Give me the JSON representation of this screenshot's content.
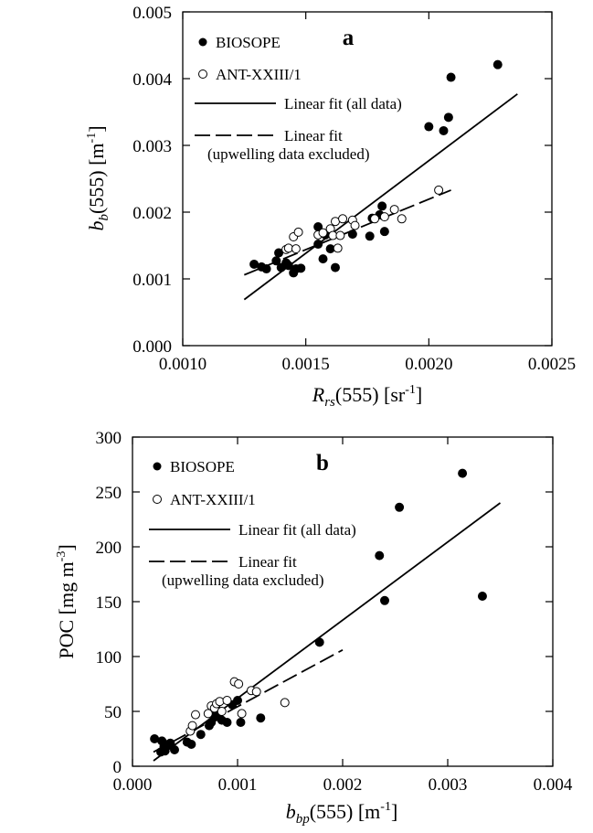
{
  "chart_data": [
    {
      "panel": "a",
      "type": "scatter",
      "xlabel": {
        "main": "R",
        "sub": "rs",
        "after": "(555)  [sr",
        "sup": "-1",
        "end": "]"
      },
      "ylabel": {
        "main": "b",
        "sub": "b",
        "after": "(555)  [m",
        "sup": "-1",
        "end": "]"
      },
      "xlim": [
        0.001,
        0.0025
      ],
      "ylim": [
        0,
        0.005
      ],
      "xticks": [
        "0.0010",
        "0.0015",
        "0.0020",
        "0.0025"
      ],
      "yticks": [
        "0.000",
        "0.001",
        "0.002",
        "0.003",
        "0.004",
        "0.005"
      ],
      "grid": false,
      "legend_position": "top-left",
      "legend": {
        "biosope": "BIOSOPE",
        "ant": "ANT-XXIII/1",
        "fit_all": "Linear fit (all data)",
        "fit_excl_1": "Linear fit",
        "fit_excl_2": "(upwelling data excluded)"
      },
      "series": [
        {
          "name": "BIOSOPE",
          "marker": "filled-circle",
          "points": [
            [
              0.00129,
              0.00122
            ],
            [
              0.00132,
              0.00118
            ],
            [
              0.00134,
              0.00115
            ],
            [
              0.00138,
              0.00127
            ],
            [
              0.00139,
              0.00139
            ],
            [
              0.0014,
              0.00117
            ],
            [
              0.00142,
              0.00124
            ],
            [
              0.00143,
              0.0012
            ],
            [
              0.00145,
              0.00109
            ],
            [
              0.00146,
              0.00115
            ],
            [
              0.00148,
              0.00116
            ],
            [
              0.00155,
              0.00152
            ],
            [
              0.00155,
              0.00178
            ],
            [
              0.00157,
              0.0013
            ],
            [
              0.00158,
              0.00166
            ],
            [
              0.0016,
              0.00145
            ],
            [
              0.00162,
              0.00117
            ],
            [
              0.00169,
              0.00167
            ],
            [
              0.00176,
              0.00164
            ],
            [
              0.00177,
              0.00191
            ],
            [
              0.0018,
              0.00196
            ],
            [
              0.00181,
              0.00209
            ],
            [
              0.00182,
              0.00171
            ],
            [
              0.002,
              0.00328
            ],
            [
              0.00206,
              0.00322
            ],
            [
              0.00208,
              0.00342
            ],
            [
              0.00209,
              0.00402
            ],
            [
              0.00228,
              0.00421
            ]
          ]
        },
        {
          "name": "ANT-XXIII/1",
          "marker": "open-circle",
          "points": [
            [
              0.00142,
              0.00144
            ],
            [
              0.00143,
              0.00146
            ],
            [
              0.00145,
              0.00163
            ],
            [
              0.00146,
              0.00145
            ],
            [
              0.00147,
              0.0017
            ],
            [
              0.00155,
              0.00166
            ],
            [
              0.00157,
              0.00169
            ],
            [
              0.0016,
              0.00175
            ],
            [
              0.00161,
              0.00165
            ],
            [
              0.00162,
              0.00186
            ],
            [
              0.00163,
              0.00146
            ],
            [
              0.00164,
              0.00165
            ],
            [
              0.00165,
              0.0019
            ],
            [
              0.00169,
              0.00188
            ],
            [
              0.0017,
              0.0018
            ],
            [
              0.00178,
              0.0019
            ],
            [
              0.00182,
              0.00193
            ],
            [
              0.00186,
              0.00204
            ],
            [
              0.00189,
              0.0019
            ],
            [
              0.00204,
              0.00233
            ]
          ]
        }
      ],
      "fits": [
        {
          "name": "Linear fit (all data)",
          "style": "solid",
          "x": [
            0.00125,
            0.00236
          ],
          "y": [
            0.00069,
            0.00377
          ]
        },
        {
          "name": "Linear fit (upwelling data excluded)",
          "style": "dashed",
          "x": [
            0.00125,
            0.00209
          ],
          "y": [
            0.00106,
            0.00233
          ]
        }
      ]
    },
    {
      "panel": "b",
      "type": "scatter",
      "xlabel": {
        "main": "b",
        "sub": "bp",
        "after": "(555)  [m",
        "sup": "-1",
        "end": "]"
      },
      "ylabel": {
        "main": "POC  [mg m",
        "sub": "",
        "after": "",
        "sup": "-3",
        "end": "]"
      },
      "xlim": [
        0,
        0.004
      ],
      "ylim": [
        0,
        300
      ],
      "xticks": [
        "0.000",
        "0.001",
        "0.002",
        "0.003",
        "0.004"
      ],
      "yticks": [
        "0",
        "50",
        "100",
        "150",
        "200",
        "250",
        "300"
      ],
      "grid": false,
      "legend_position": "top-left",
      "legend": {
        "biosope": "BIOSOPE",
        "ant": "ANT-XXIII/1",
        "fit_all": "Linear fit (all data)",
        "fit_excl_1": "Linear fit",
        "fit_excl_2": "(upwelling data excluded)"
      },
      "series": [
        {
          "name": "BIOSOPE",
          "marker": "filled-circle",
          "points": [
            [
              0.00021,
              25
            ],
            [
              0.00027,
              13
            ],
            [
              0.00028,
              23
            ],
            [
              0.0003,
              18
            ],
            [
              0.00031,
              14
            ],
            [
              0.00034,
              20
            ],
            [
              0.00036,
              21
            ],
            [
              0.0004,
              15
            ],
            [
              0.00052,
              22
            ],
            [
              0.00056,
              20
            ],
            [
              0.00065,
              29
            ],
            [
              0.00073,
              37
            ],
            [
              0.00075,
              40
            ],
            [
              0.00077,
              48
            ],
            [
              0.00079,
              45
            ],
            [
              0.0008,
              52
            ],
            [
              0.00082,
              46
            ],
            [
              0.00085,
              42
            ],
            [
              0.0009,
              40
            ],
            [
              0.00095,
              56
            ],
            [
              0.001,
              60
            ],
            [
              0.00103,
              40
            ],
            [
              0.00122,
              44
            ],
            [
              0.00178,
              113
            ],
            [
              0.00235,
              192
            ],
            [
              0.0024,
              151
            ],
            [
              0.00254,
              236
            ],
            [
              0.00314,
              267
            ],
            [
              0.00333,
              155
            ]
          ]
        },
        {
          "name": "ANT-XXIII/1",
          "marker": "open-circle",
          "points": [
            [
              0.00055,
              32
            ],
            [
              0.00057,
              37
            ],
            [
              0.0006,
              47
            ],
            [
              0.00072,
              48
            ],
            [
              0.00075,
              55
            ],
            [
              0.00078,
              53
            ],
            [
              0.0008,
              57
            ],
            [
              0.00083,
              59
            ],
            [
              0.00085,
              50
            ],
            [
              0.0009,
              60
            ],
            [
              0.00097,
              77
            ],
            [
              0.00101,
              75
            ],
            [
              0.00104,
              48
            ],
            [
              0.00113,
              69
            ],
            [
              0.00118,
              68
            ],
            [
              0.00145,
              58
            ]
          ]
        }
      ],
      "fits": [
        {
          "name": "Linear fit (all data)",
          "style": "solid",
          "x": [
            0.0002,
            0.0035
          ],
          "y": [
            5,
            240
          ]
        },
        {
          "name": "Linear fit (upwelling data excluded)",
          "style": "dashed",
          "x": [
            0.0002,
            0.002
          ],
          "y": [
            13,
            106
          ]
        }
      ]
    }
  ]
}
